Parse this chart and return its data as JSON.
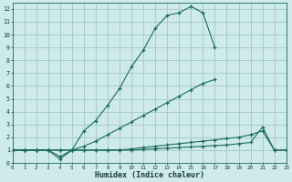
{
  "xlabel": "Humidex (Indice chaleur)",
  "bg_color": "#ceeaea",
  "grid_color": "#a8cccc",
  "line_color": "#1a6b5a",
  "lines": [
    {
      "x": [
        0,
        1,
        2,
        3,
        4,
        5,
        6,
        7,
        8,
        9,
        10,
        11,
        12,
        13,
        14,
        15,
        16,
        17
      ],
      "y": [
        1,
        1,
        1,
        1,
        0.3,
        1.0,
        2.5,
        3.3,
        4.5,
        5.8,
        7.5,
        8.8,
        10.5,
        11.5,
        11.7,
        12.2,
        11.7,
        9.0
      ]
    },
    {
      "x": [
        0,
        1,
        2,
        3,
        4,
        5,
        6,
        7,
        8,
        9,
        10,
        11,
        12,
        13,
        14,
        15,
        16,
        17
      ],
      "y": [
        1,
        1,
        1,
        1,
        0.5,
        1.0,
        1.3,
        1.7,
        2.2,
        2.7,
        3.2,
        3.7,
        4.2,
        4.7,
        5.2,
        5.7,
        6.2,
        6.5
      ]
    },
    {
      "x": [
        0,
        1,
        2,
        3,
        4,
        5,
        6,
        7,
        8,
        9,
        10,
        11,
        12,
        13,
        14,
        15,
        16,
        17,
        18,
        19,
        20,
        21,
        22,
        23
      ],
      "y": [
        1,
        1,
        1,
        1,
        1,
        1,
        1,
        1,
        1,
        1,
        1.1,
        1.2,
        1.3,
        1.4,
        1.5,
        1.6,
        1.7,
        1.8,
        1.9,
        2.0,
        2.2,
        2.5,
        1.0,
        1.0
      ]
    },
    {
      "x": [
        0,
        1,
        2,
        3,
        4,
        5,
        6,
        7,
        8,
        9,
        10,
        11,
        12,
        13,
        14,
        15,
        16,
        17,
        18,
        19,
        20,
        21,
        22,
        23
      ],
      "y": [
        1,
        1,
        1,
        1,
        1,
        1,
        1,
        1,
        1,
        1,
        1.0,
        1.05,
        1.1,
        1.15,
        1.2,
        1.25,
        1.3,
        1.35,
        1.4,
        1.5,
        1.6,
        2.8,
        1.0,
        1.0
      ]
    }
  ],
  "xlim": [
    0,
    23
  ],
  "ylim": [
    0,
    12.5
  ],
  "yticks": [
    0,
    1,
    2,
    3,
    4,
    5,
    6,
    7,
    8,
    9,
    10,
    11,
    12
  ],
  "xticks": [
    0,
    1,
    2,
    3,
    4,
    5,
    6,
    7,
    8,
    9,
    10,
    11,
    12,
    13,
    14,
    15,
    16,
    17,
    18,
    19,
    20,
    21,
    22,
    23
  ]
}
